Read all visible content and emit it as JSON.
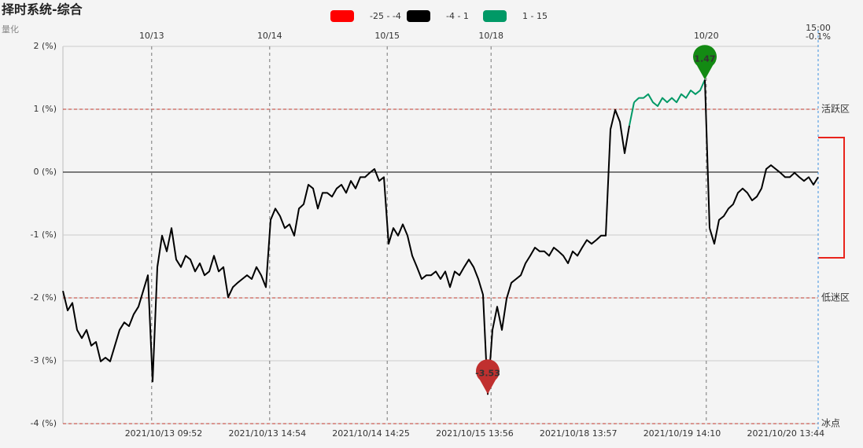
{
  "chart_data": {
    "type": "line",
    "title": "择时系统-综合",
    "subtitle": "量化",
    "ylim": [
      -4,
      2
    ],
    "yticks": [
      {
        "value": 2,
        "label": "2 (%)"
      },
      {
        "value": 1,
        "label": "1 (%)"
      },
      {
        "value": 0,
        "label": "0 (%)"
      },
      {
        "value": -1,
        "label": "-1 (%)"
      },
      {
        "value": -2,
        "label": "-2 (%)"
      },
      {
        "value": -3,
        "label": "-3 (%)"
      },
      {
        "value": -4,
        "label": "-4 (%)"
      }
    ],
    "grid": true,
    "xlim": [
      0,
      160
    ],
    "color_bands": [
      {
        "label": "-25 - -4",
        "min": -25,
        "max": -4,
        "color": "#ff0000"
      },
      {
        "label": "-4 - 1",
        "min": -4,
        "max": 1,
        "color": "#000000"
      },
      {
        "label": "1 - 15",
        "min": 1,
        "max": 15,
        "color": "#009966"
      }
    ],
    "zones": [
      {
        "value": 1,
        "label": "活跃区"
      },
      {
        "value": -2,
        "label": "低迷区"
      },
      {
        "value": -4,
        "label": "冰点"
      }
    ],
    "zone_color": "#c0392b",
    "pin_colors": {
      "max": "#138a13",
      "min": "#c0302f"
    },
    "day_markers": [
      {
        "label": "10/13",
        "x": 18.8
      },
      {
        "label": "10/14",
        "x": 43.8
      },
      {
        "label": "10/15",
        "x": 68.7
      },
      {
        "label": "10/18",
        "x": 90.7
      },
      {
        "label": "10/20",
        "x": 136.3
      }
    ],
    "xtick_labels": [
      "2021/10/13 09:52",
      "2021/10/13 14:54",
      "2021/10/14 14:25",
      "2021/10/15 13:56",
      "2021/10/18 13:57",
      "2021/10/19 14:10",
      "2021/10/20 13:44"
    ],
    "last_point": {
      "time": "15:00",
      "value_label": "-0.1%"
    },
    "series": [
      {
        "values": [
          -1.89,
          -2.2,
          -2.08,
          -2.51,
          -2.64,
          -2.51,
          -2.76,
          -2.7,
          -3.01,
          -2.95,
          -3.01,
          -2.76,
          -2.51,
          -2.39,
          -2.45,
          -2.26,
          -2.14,
          -1.89,
          -1.64,
          -3.33,
          -1.51,
          -1.01,
          -1.26,
          -0.89,
          -1.39,
          -1.51,
          -1.33,
          -1.39,
          -1.58,
          -1.45,
          -1.64,
          -1.58,
          -1.33,
          -1.58,
          -1.51,
          -1.99,
          -1.83,
          -1.76,
          -1.7,
          -1.64,
          -1.7,
          -1.51,
          -1.64,
          -1.83,
          -0.76,
          -0.58,
          -0.7,
          -0.89,
          -0.83,
          -1.01,
          -0.58,
          -0.51,
          -0.2,
          -0.26,
          -0.58,
          -0.33,
          -0.33,
          -0.39,
          -0.26,
          -0.2,
          -0.33,
          -0.14,
          -0.26,
          -0.08,
          -0.08,
          -0.01,
          0.05,
          -0.14,
          -0.08,
          -1.14,
          -0.89,
          -1.01,
          -0.83,
          -1.01,
          -1.33,
          -1.51,
          -1.7,
          -1.64,
          -1.64,
          -1.58,
          -1.7,
          -1.58,
          -1.83,
          -1.58,
          -1.64,
          -1.51,
          -1.39,
          -1.51,
          -1.7,
          -1.95,
          -3.53,
          -2.51,
          -2.14,
          -2.51,
          -2.01,
          -1.76,
          -1.7,
          -1.64,
          -1.45,
          -1.33,
          -1.2,
          -1.26,
          -1.26,
          -1.33,
          -1.2,
          -1.26,
          -1.33,
          -1.45,
          -1.26,
          -1.33,
          -1.2,
          -1.08,
          -1.14,
          -1.08,
          -1.01,
          -1.01,
          0.68,
          0.99,
          0.8,
          0.3,
          0.74,
          1.11,
          1.18,
          1.18,
          1.24,
          1.11,
          1.05,
          1.18,
          1.11,
          1.18,
          1.11,
          1.24,
          1.18,
          1.3,
          1.24,
          1.3,
          1.47,
          -0.89,
          -1.14,
          -0.76,
          -0.7,
          -0.58,
          -0.51,
          -0.33,
          -0.26,
          -0.33,
          -0.45,
          -0.39,
          -0.26,
          0.05,
          0.11,
          0.05,
          -0.01,
          -0.08,
          -0.08,
          -0.01,
          -0.08,
          -0.14,
          -0.08,
          -0.2,
          -0.08
        ]
      }
    ]
  }
}
